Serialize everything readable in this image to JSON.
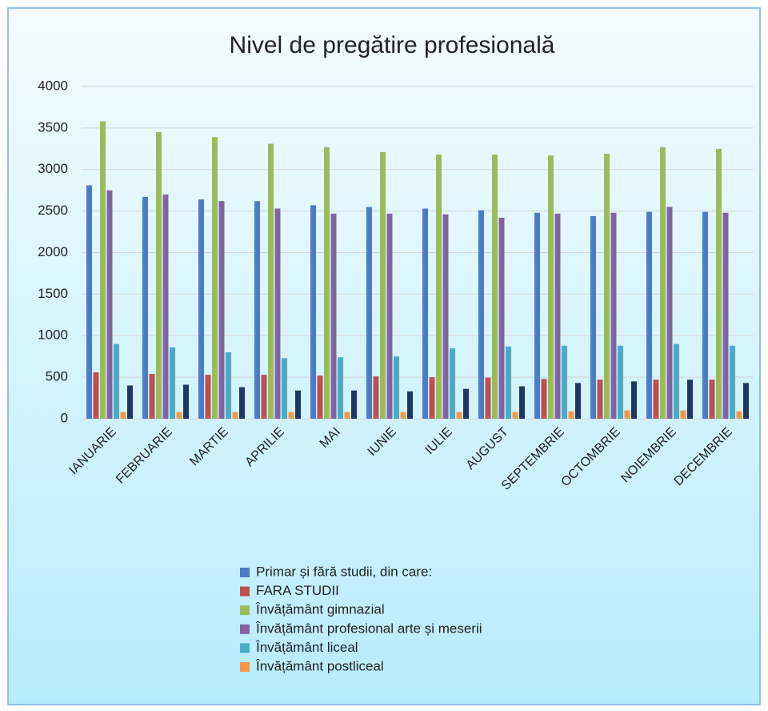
{
  "chart_data": {
    "type": "bar",
    "title": "Nivel de pregătire profesională",
    "categories": [
      "IANUARIE",
      "FEBRUARIE",
      "MARTIE",
      "APRILIE",
      "MAI",
      "IUNIE",
      "IULIE",
      "AUGUST",
      "SEPTEMBRIE",
      "OCTOMBRIE",
      "NOIEMBRIE",
      "DECEMBRIE"
    ],
    "series": [
      {
        "name": "Primar și fără studii, din care:",
        "color": "#4a7cc9",
        "values": [
          2810,
          2670,
          2640,
          2620,
          2570,
          2550,
          2530,
          2510,
          2480,
          2440,
          2490,
          2490
        ]
      },
      {
        "name": "FARA STUDII",
        "color": "#c0504d",
        "values": [
          560,
          540,
          530,
          530,
          520,
          510,
          500,
          495,
          480,
          470,
          470,
          470
        ]
      },
      {
        "name": "Învățământ gimnazial",
        "color": "#9bbb59",
        "values": [
          3580,
          3450,
          3390,
          3310,
          3270,
          3210,
          3180,
          3180,
          3170,
          3190,
          3270,
          3250
        ]
      },
      {
        "name": "Învățământ profesional arte și meserii",
        "color": "#8064a2",
        "values": [
          2750,
          2700,
          2620,
          2530,
          2470,
          2470,
          2460,
          2420,
          2470,
          2480,
          2550,
          2480
        ]
      },
      {
        "name": "Învățământ liceal",
        "color": "#4bacc6",
        "values": [
          900,
          860,
          800,
          730,
          740,
          750,
          850,
          870,
          880,
          880,
          900,
          880
        ]
      },
      {
        "name": "Învățământ postliceal",
        "color": "#f79646",
        "values": [
          80,
          80,
          80,
          80,
          80,
          80,
          80,
          80,
          90,
          100,
          100,
          90
        ]
      },
      {
        "name": null,
        "color": "#1f3864",
        "values": [
          400,
          410,
          380,
          340,
          340,
          330,
          360,
          390,
          430,
          450,
          470,
          430
        ]
      }
    ],
    "ylim": [
      0,
      4000
    ],
    "yticks": [
      0,
      500,
      1000,
      1500,
      2000,
      2500,
      3000,
      3500,
      4000
    ],
    "grid": true
  }
}
